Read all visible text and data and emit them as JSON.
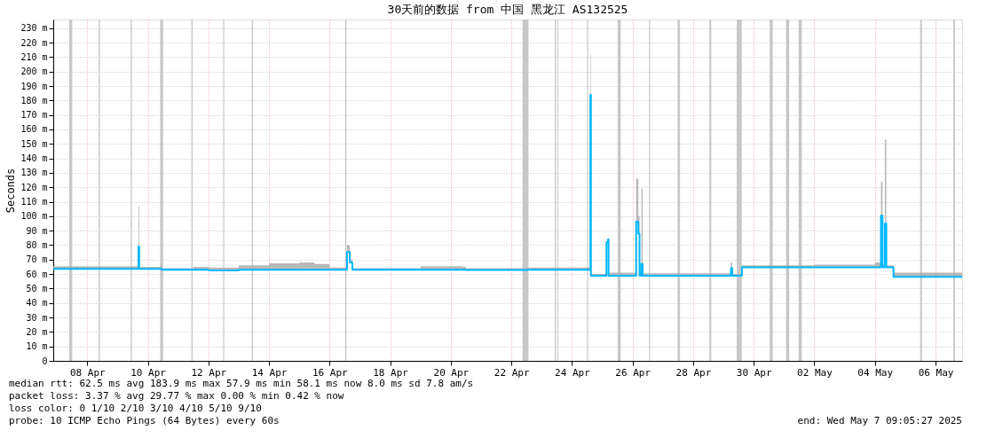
{
  "chart_data": {
    "type": "line",
    "title": "30天前的数据 from 中国 黑龙江 AS132525",
    "ylabel": "Seconds",
    "x": [
      "2025-04-07T09:05",
      "2025-04-08T12:00",
      "2025-04-10T04:00",
      "2025-04-10T04:35",
      "2025-04-10T05:10",
      "2025-04-10T22:00",
      "2025-04-10T23:00",
      "2025-04-12T00:00",
      "2025-04-12T12:00",
      "2025-04-13T12:00",
      "2025-04-14T12:00",
      "2025-04-15T12:00",
      "2025-04-16T00:00",
      "2025-04-16T12:00",
      "2025-04-17T01:00",
      "2025-04-17T01:47",
      "2025-04-17T04:00",
      "2025-04-17T06:00",
      "2025-04-19T12:00",
      "2025-04-20T21:00",
      "2025-04-21T00:00",
      "2025-04-23T00:00",
      "2025-04-25T02:00",
      "2025-04-25T02:36",
      "2025-04-25T03:00",
      "2025-04-25T15:00",
      "2025-04-25T15:20",
      "2025-04-25T16:30",
      "2025-04-25T17:00",
      "2025-04-26T14:00",
      "2025-04-26T14:50",
      "2025-04-26T16:35",
      "2025-04-26T17:30",
      "2025-04-26T19:00",
      "2025-04-26T20:00",
      "2025-04-29T17:00",
      "2025-04-29T17:55",
      "2025-04-29T19:00",
      "2025-04-30T02:29",
      "2025-04-30T02:35",
      "2025-05-02T12:00",
      "2025-05-04T12:00",
      "2025-05-04T16:45",
      "2025-05-04T18:00",
      "2025-05-04T19:50",
      "2025-05-04T21:00",
      "2025-05-05T02:20",
      "2025-05-05T02:40",
      "2025-05-07T09:05"
    ],
    "series": [
      {
        "color": "#00b8ff",
        "values": [
          63.6,
          63.6,
          63.6,
          79,
          63.6,
          63.6,
          63.0,
          63.0,
          62.5,
          63.0,
          63.0,
          63.0,
          63.0,
          63.0,
          63.0,
          75.3,
          68,
          63.0,
          63.0,
          63.0,
          62.8,
          63.0,
          63.5,
          183.9,
          58.9,
          58.9,
          82,
          84,
          58.9,
          58.9,
          96.3,
          88,
          58.9,
          67,
          58.9,
          58.9,
          64,
          58.9,
          58.9,
          64.6,
          64.6,
          64.6,
          100.4,
          64.6,
          94.9,
          64.6,
          64.6,
          58.1,
          58.1
        ],
        "lower": [
          63.6,
          63.6,
          63.6,
          79,
          63.6,
          63.6,
          63.0,
          63.0,
          62.5,
          63.0,
          63.0,
          63.0,
          63.0,
          63.0,
          63.0,
          75.3,
          68,
          63.0,
          63.0,
          63.0,
          62.8,
          63.0,
          63.5,
          183.9,
          58.9,
          58.9,
          82,
          84,
          58.9,
          58.9,
          96.3,
          88,
          58.9,
          67,
          58.9,
          58.9,
          64,
          58.9,
          58.9,
          64.6,
          64.6,
          64.6,
          100.4,
          64.6,
          94.9,
          64.6,
          64.6,
          58.1,
          58.1
        ],
        "upper": [
          65.5,
          65.5,
          65,
          107,
          65,
          66,
          64,
          65,
          64.5,
          66,
          67.5,
          68,
          67,
          64.5,
          64,
          80,
          70,
          64,
          65.5,
          65,
          64,
          64.5,
          66,
          212,
          60,
          61,
          82,
          84,
          61,
          61,
          126,
          100,
          61,
          119,
          60.5,
          61,
          68,
          60,
          60,
          66,
          66.5,
          68,
          124,
          66,
          153,
          66,
          66,
          61,
          59.5
        ]
      }
    ],
    "xlim": [
      "2025-04-07T09:05",
      "2025-05-07T09:05"
    ],
    "xticks": [
      {
        "value": "2025-04-08T12:00",
        "label": "08 Apr"
      },
      {
        "value": "2025-04-10T12:00",
        "label": "10 Apr"
      },
      {
        "value": "2025-04-12T12:00",
        "label": "12 Apr"
      },
      {
        "value": "2025-04-14T12:00",
        "label": "14 Apr"
      },
      {
        "value": "2025-04-16T12:00",
        "label": "16 Apr"
      },
      {
        "value": "2025-04-18T12:00",
        "label": "18 Apr"
      },
      {
        "value": "2025-04-20T12:00",
        "label": "20 Apr"
      },
      {
        "value": "2025-04-22T12:00",
        "label": "22 Apr"
      },
      {
        "value": "2025-04-24T12:00",
        "label": "24 Apr"
      },
      {
        "value": "2025-04-26T12:00",
        "label": "26 Apr"
      },
      {
        "value": "2025-04-28T12:00",
        "label": "28 Apr"
      },
      {
        "value": "2025-04-30T12:00",
        "label": "30 Apr"
      },
      {
        "value": "2025-05-02T12:00",
        "label": "02 May"
      },
      {
        "value": "2025-05-04T12:00",
        "label": "04 May"
      },
      {
        "value": "2025-05-06T12:00",
        "label": "06 May"
      }
    ],
    "ylim": [
      0,
      236
    ],
    "yticks": [
      0,
      {
        "value": 10,
        "label": "10 m"
      },
      {
        "value": 20,
        "label": "20 m"
      },
      {
        "value": 30,
        "label": "30 m"
      },
      {
        "value": 40,
        "label": "40 m"
      },
      {
        "value": 50,
        "label": "50 m"
      },
      {
        "value": 60,
        "label": "60 m"
      },
      {
        "value": 70,
        "label": "70 m"
      },
      {
        "value": 80,
        "label": "80 m"
      },
      {
        "value": 90,
        "label": "90 m"
      },
      {
        "value": 100,
        "label": "100 m"
      },
      {
        "value": 110,
        "label": "110 m"
      },
      {
        "value": 120,
        "label": "120 m"
      },
      {
        "value": 130,
        "label": "130 m"
      },
      {
        "value": 140,
        "label": "140 m"
      },
      {
        "value": 150,
        "label": "150 m"
      },
      {
        "value": 160,
        "label": "160 m"
      },
      {
        "value": 170,
        "label": "170 m"
      },
      {
        "value": 180,
        "label": "180 m"
      },
      {
        "value": 190,
        "label": "190 m"
      },
      {
        "value": 200,
        "label": "200 m"
      },
      {
        "value": 210,
        "label": "210 m"
      },
      {
        "value": 220,
        "label": "220 m"
      },
      {
        "value": 230,
        "label": "230 m"
      }
    ],
    "bands": [
      {
        "axis": "x",
        "from": "2025-04-07T21:45",
        "to": "2025-04-08T00:05",
        "color": "#c8c8c8"
      },
      {
        "axis": "x",
        "from": "2025-04-08T21:00",
        "to": "2025-04-08T22:00",
        "color": "#c8c8c8"
      },
      {
        "axis": "x",
        "from": "2025-04-09T22:20",
        "to": "2025-04-09T23:20",
        "color": "#c8c8c8"
      },
      {
        "axis": "x",
        "from": "2025-04-10T21:45",
        "to": "2025-04-11T00:05",
        "color": "#c8c8c8"
      },
      {
        "axis": "x",
        "from": "2025-04-11T22:30",
        "to": "2025-04-11T23:30",
        "color": "#c8c8c8"
      },
      {
        "axis": "x",
        "from": "2025-04-12T23:40",
        "to": "2025-04-13T00:30",
        "color": "#c8c8c8"
      },
      {
        "axis": "x",
        "from": "2025-04-13T22:20",
        "to": "2025-04-13T23:20",
        "color": "#c8c8c8"
      },
      {
        "axis": "x",
        "from": "2025-04-17T00:20",
        "to": "2025-04-17T01:20",
        "color": "#c8c8c8"
      },
      {
        "axis": "x",
        "from": "2025-04-22T20:50",
        "to": "2025-04-23T01:30",
        "color": "#c8c8c8"
      },
      {
        "axis": "x",
        "from": "2025-04-23T22:20",
        "to": "2025-04-23T23:20",
        "color": "#c8c8c8"
      },
      {
        "axis": "x",
        "from": "2025-04-24T00:30",
        "to": "2025-04-24T01:10",
        "color": "#c8c8c8"
      },
      {
        "axis": "x",
        "from": "2025-04-25T00:00",
        "to": "2025-04-25T00:50",
        "color": "#c8c8c8"
      },
      {
        "axis": "x",
        "from": "2025-04-26T00:10",
        "to": "2025-04-26T02:35",
        "color": "#c8c8c8"
      },
      {
        "axis": "x",
        "from": "2025-04-27T01:00",
        "to": "2025-04-27T01:50",
        "color": "#c8c8c8"
      },
      {
        "axis": "x",
        "from": "2025-04-27T23:40",
        "to": "2025-04-28T01:35",
        "color": "#c8c8c8"
      },
      {
        "axis": "x",
        "from": "2025-04-29T00:50",
        "to": "2025-04-29T02:20",
        "color": "#c8c8c8"
      },
      {
        "axis": "x",
        "from": "2025-04-29T22:30",
        "to": "2025-04-30T02:30",
        "color": "#c8c8c8"
      },
      {
        "axis": "x",
        "from": "2025-05-01T00:35",
        "to": "2025-05-01T03:00",
        "color": "#c8c8c8"
      },
      {
        "axis": "x",
        "from": "2025-05-01T13:35",
        "to": "2025-05-01T16:05",
        "color": "#c8c8c8"
      },
      {
        "axis": "x",
        "from": "2025-05-01T23:30",
        "to": "2025-05-02T02:05",
        "color": "#c8c8c8"
      },
      {
        "axis": "x",
        "from": "2025-05-05T23:50",
        "to": "2025-05-06T01:15",
        "color": "#c8c8c8"
      },
      {
        "axis": "x",
        "from": "2025-05-07T02:05",
        "to": "2025-05-07T03:25",
        "color": "#c8c8c8"
      }
    ],
    "grid": true,
    "annotations": [
      "median rtt:  62.5 ms avg  183.9 ms max  57.9 ms min  58.1 ms now  8.0 ms sd  7.8   am/s",
      "packet loss: 3.37 % avg  29.77 % max  0.00 % min  0.42 % now",
      "loss color:   0   1/10   2/10   3/10   4/10   5/10   9/10",
      "probe:       10 ICMP Echo Pings (64 Bytes) every 60s",
      "end: Wed May  7 09:05:27 2025"
    ]
  }
}
